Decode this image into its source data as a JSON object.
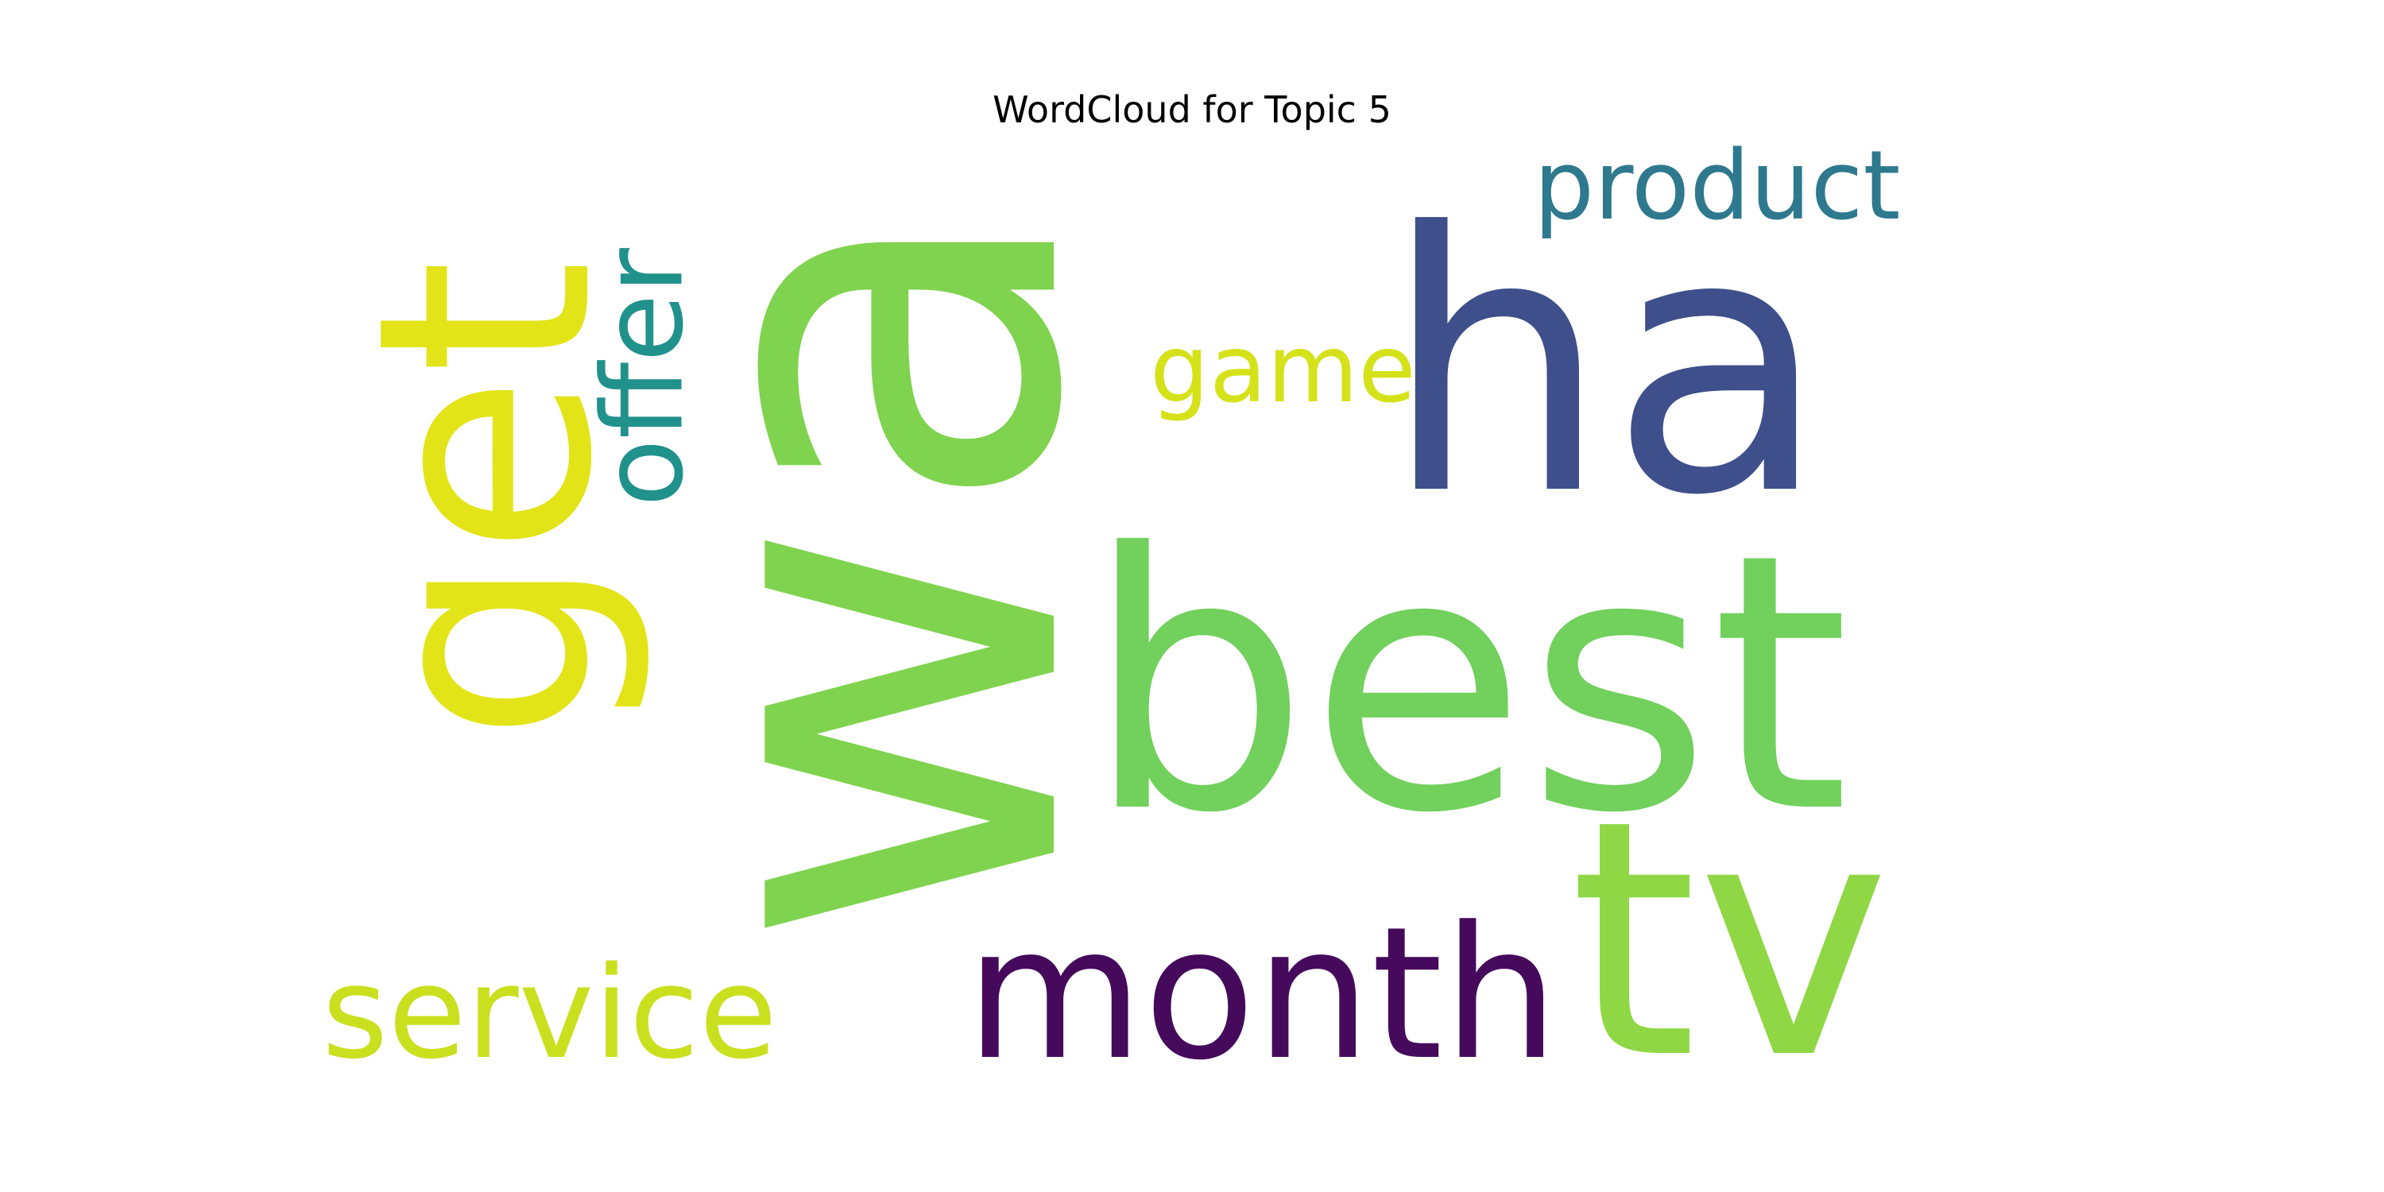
{
  "figure": {
    "title": "WordCloud for Topic 5"
  },
  "words": [
    {
      "key": "wa",
      "text": "wa",
      "color": "#7fd34e",
      "rotated": true
    },
    {
      "key": "ha",
      "text": "ha",
      "color": "#3e4f8b",
      "rotated": false
    },
    {
      "key": "best",
      "text": "best",
      "color": "#72d05d",
      "rotated": false
    },
    {
      "key": "tv",
      "text": "tv",
      "color": "#8fd744",
      "rotated": false
    },
    {
      "key": "month",
      "text": "month",
      "color": "#450a5c",
      "rotated": false
    },
    {
      "key": "get",
      "text": "get",
      "color": "#e3e418",
      "rotated": true
    },
    {
      "key": "offer",
      "text": "offer",
      "color": "#21918c",
      "rotated": true
    },
    {
      "key": "service",
      "text": "service",
      "color": "#c9e01f",
      "rotated": false
    },
    {
      "key": "product",
      "text": "product",
      "color": "#2e798e",
      "rotated": false
    },
    {
      "key": "game",
      "text": "game",
      "color": "#d5e21a",
      "rotated": false
    }
  ]
}
